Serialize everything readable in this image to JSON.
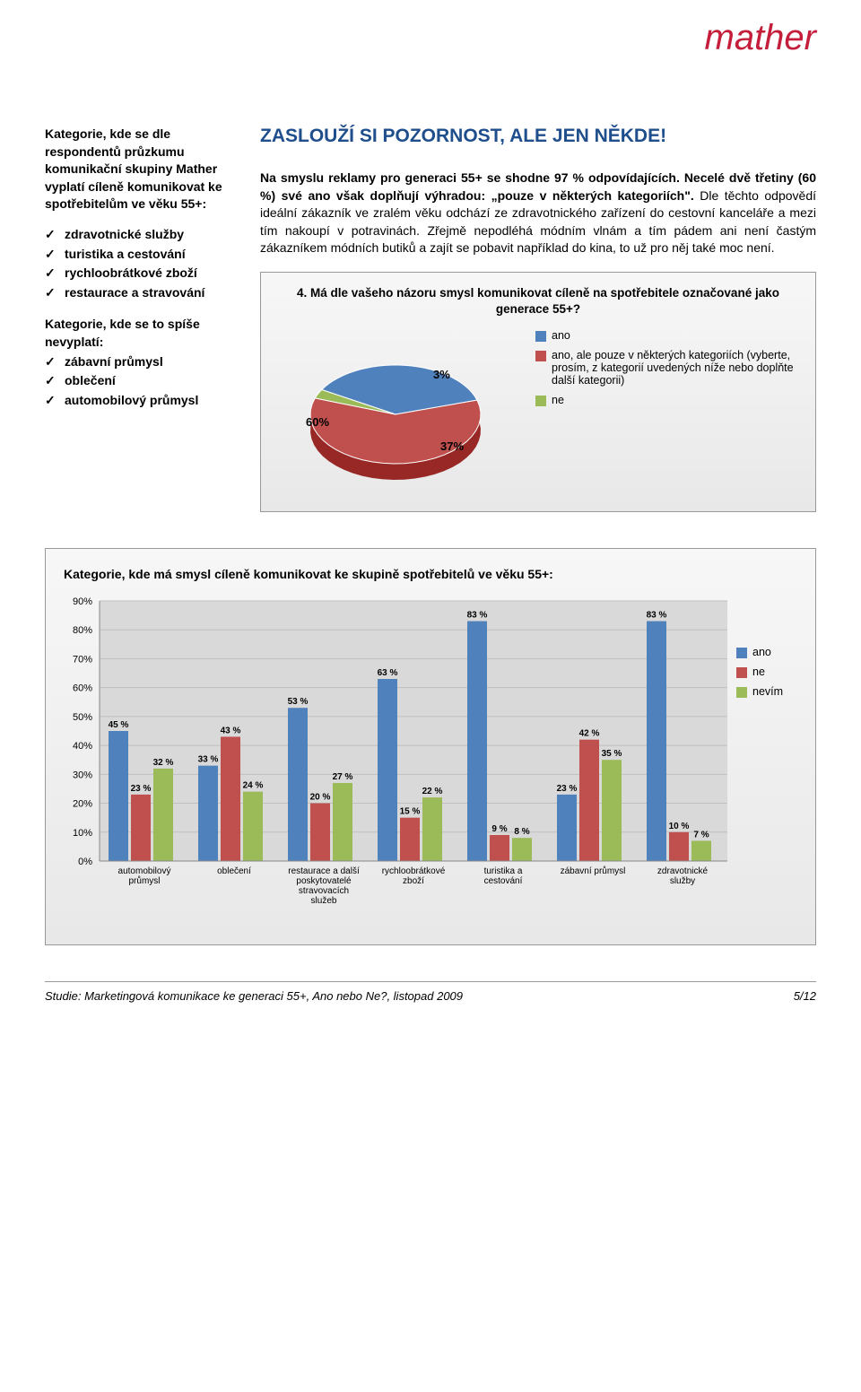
{
  "logo_text": "mather",
  "heading": "ZASLOUŽÍ SI POZORNOST, ALE JEN NĚKDE!",
  "left": {
    "intro": "Kategorie, kde se dle respondentů průzkumu komunikační skupiny Mather vyplatí cíleně komunikovat ke spotřebitelům ve věku 55+:",
    "list1": [
      "zdravotnické služby",
      "turistika a cestování",
      "rychloobrátkové zboží",
      "restaurace a stravování"
    ],
    "mid": "Kategorie, kde se to spíše nevyplatí:",
    "list2": [
      "zábavní průmysl",
      "oblečení",
      "automobilový průmysl"
    ]
  },
  "right_para1_bold": "Na smyslu reklamy pro generaci 55+ se shodne 97 % odpovídajících. Necelé dvě třetiny (60 %) své ano však doplňují výhradou: „pouze v některých kategoriích\".",
  "right_para1_tail": " Dle těchto odpovědí ideální zákazník ve zralém věku odchází ze zdravotnického zařízení do cestovní kanceláře a mezi tím nakoupí v potravinách. Zřejmě nepodléhá módním vlnám a tím pádem ani není častým zákazníkem módních butiků a zajít se pobavit například do kina, to už pro něj také moc není.",
  "pie_chart": {
    "title": "4. Má dle vašeho názoru smysl komunikovat cíleně na spotřebitele označované jako generace 55+?",
    "slices": [
      {
        "label": "ano",
        "value": 37,
        "color": "#4f81bd",
        "show_pct": "37%"
      },
      {
        "label": "ano, ale pouze v některých kategoriích (vyberte, prosím, z kategorií uvedených níže nebo doplňte další kategorii)",
        "value": 60,
        "color": "#c0504d",
        "show_pct": "60%"
      },
      {
        "label": "ne",
        "value": 3,
        "color": "#9bbb59",
        "show_pct": "3%"
      }
    ]
  },
  "bar_chart": {
    "title": "Kategorie, kde má smysl cíleně komunikovat ke skupině spotřebitelů ve věku 55+:",
    "ymax": 90,
    "ytick_step": 10,
    "colors": {
      "ano": "#4f81bd",
      "ne": "#c0504d",
      "nevim": "#9bbb59"
    },
    "grid_color": "#bfbfbf",
    "plot_bg": "#d9d9d9",
    "series_labels": {
      "ano": "ano",
      "ne": "ne",
      "nevim": "nevím"
    },
    "categories": [
      {
        "name": "automobilový průmysl",
        "ano": 45,
        "ne": 23,
        "nevim": 32
      },
      {
        "name": "oblečení",
        "ano": 33,
        "ne": 43,
        "nevim": 24
      },
      {
        "name": "restaurace a další poskytovatelé stravovacích služeb",
        "ano": 53,
        "ne": 20,
        "nevim": 27
      },
      {
        "name": "rychloobrátkové zboží",
        "ano": 63,
        "ne": 15,
        "nevim": 22
      },
      {
        "name": "turistika a cestování",
        "ano": 83,
        "ne": 9,
        "nevim": 8
      },
      {
        "name": "zábavní průmysl",
        "ano": 23,
        "ne": 42,
        "nevim": 35
      },
      {
        "name": "zdravotnické služby",
        "ano": 83,
        "ne": 10,
        "nevim": 7
      }
    ]
  },
  "footer": {
    "left": "Studie: Marketingová komunikace ke generaci 55+, Ano nebo Ne?, listopad 2009",
    "right": "5/12"
  }
}
